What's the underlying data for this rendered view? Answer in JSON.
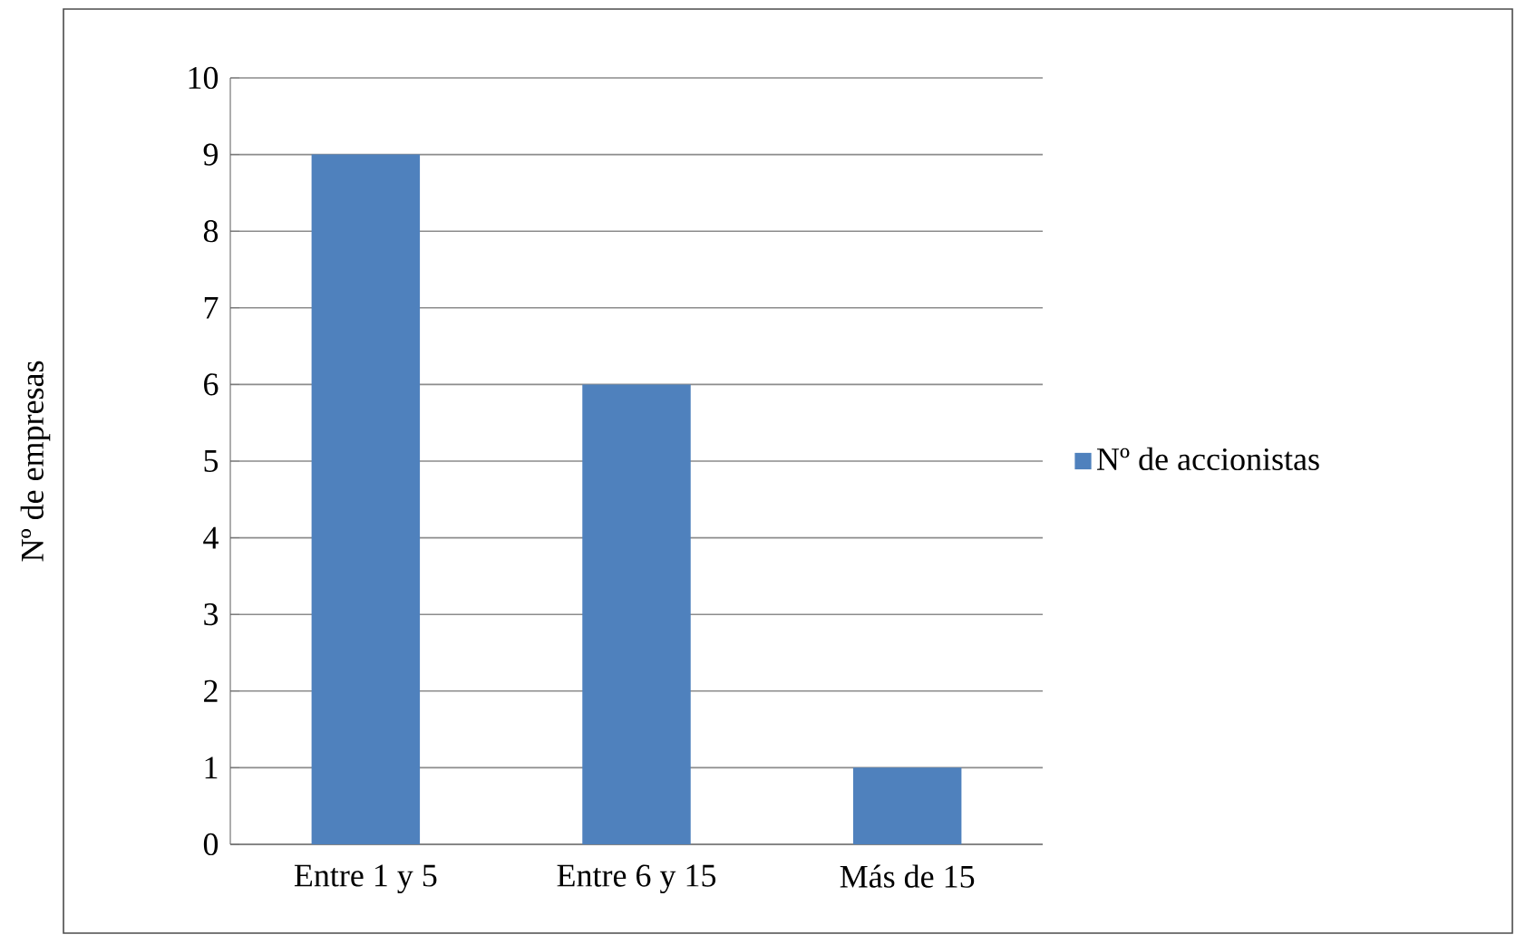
{
  "chart_data": {
    "type": "bar",
    "ylabel": "Nº de empresas",
    "categories": [
      "Entre 1 y 5",
      "Entre 6 y 15",
      "Más de 15"
    ],
    "series": [
      {
        "name": "Nº de accionistas",
        "color": "#4f81bd",
        "values": [
          9,
          6,
          1
        ]
      }
    ],
    "ylim": [
      0,
      10
    ],
    "yticks": [
      0,
      1,
      2,
      3,
      4,
      5,
      6,
      7,
      8,
      9,
      10
    ],
    "grid": "y",
    "legend": "right"
  }
}
